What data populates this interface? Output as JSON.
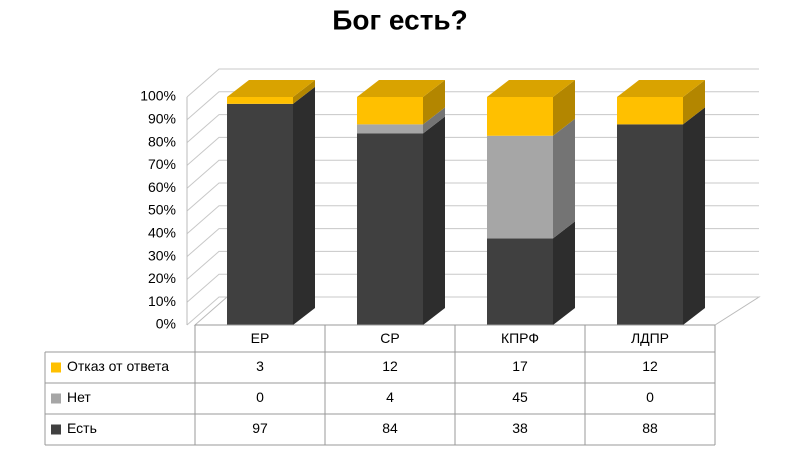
{
  "chart_data": {
    "type": "bar3d_stacked",
    "title": "Бог есть?",
    "categories": [
      "ЕР",
      "СР",
      "КПРФ",
      "ЛДПР"
    ],
    "series": [
      {
        "name": "Есть",
        "color": "#404040",
        "values": [
          97,
          84,
          38,
          88
        ]
      },
      {
        "name": "Нет",
        "color": "#a6a6a6",
        "values": [
          0,
          4,
          45,
          0
        ]
      },
      {
        "name": "Отказ от ответа",
        "color": "#ffc000",
        "values": [
          3,
          12,
          17,
          12
        ]
      }
    ],
    "ylim": [
      0,
      100
    ],
    "yticks": [
      {
        "value": 0,
        "label": "0%"
      },
      {
        "value": 10,
        "label": "10%"
      },
      {
        "value": 20,
        "label": "20%"
      },
      {
        "value": 30,
        "label": "30%"
      },
      {
        "value": 40,
        "label": "40%"
      },
      {
        "value": 50,
        "label": "50%"
      },
      {
        "value": 60,
        "label": "60%"
      },
      {
        "value": 70,
        "label": "70%"
      },
      {
        "value": 80,
        "label": "80%"
      },
      {
        "value": 90,
        "label": "90%"
      },
      {
        "value": 100,
        "label": "100%"
      }
    ],
    "grid": true,
    "data_table": true
  }
}
